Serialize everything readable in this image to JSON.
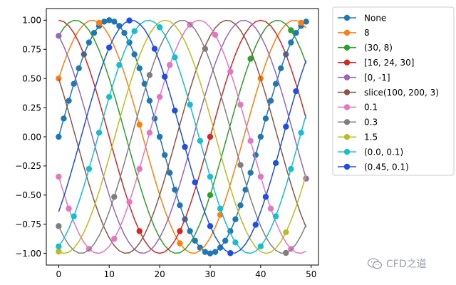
{
  "chart_data": {
    "type": "line",
    "title": "",
    "xlabel": "",
    "ylabel": "",
    "xlim": [
      -2.45,
      51.45
    ],
    "ylim": [
      -1.1,
      1.1
    ],
    "xticks": [
      0,
      10,
      20,
      30,
      40,
      50
    ],
    "xtick_labels": [
      "0",
      "10",
      "20",
      "30",
      "40",
      "50"
    ],
    "yticks": [
      -1.0,
      -0.75,
      -0.5,
      -0.25,
      0.0,
      0.25,
      0.5,
      0.75,
      1.0
    ],
    "ytick_labels": [
      "−1.00",
      "−0.75",
      "−0.50",
      "−0.25",
      "0.00",
      "0.25",
      "0.50",
      "0.75",
      "1.00"
    ],
    "grid": false,
    "legend_position": "outside-right",
    "x_range": [
      0,
      49
    ],
    "x_step": 1,
    "function": "sin(2*pi*x/40 + phase)",
    "series": [
      {
        "name": "None",
        "color": "#1f77b4",
        "phase_deg": 0,
        "markevery": "None"
      },
      {
        "name": "8",
        "color": "#ff7f0e",
        "phase_deg": 30,
        "markevery": 8
      },
      {
        "name": "(30, 8)",
        "color": "#2ca02c",
        "phase_deg": 60,
        "markevery": [
          30,
          8
        ]
      },
      {
        "name": "[16, 24, 30]",
        "color": "#d62728",
        "phase_deg": 90,
        "markevery": [
          16,
          24,
          30
        ]
      },
      {
        "name": "[0, -1]",
        "color": "#9467bd",
        "phase_deg": 120,
        "markevery": [
          0,
          -1
        ]
      },
      {
        "name": "slice(100, 200, 3)",
        "color": "#8c564b",
        "phase_deg": 150,
        "markevery": "slice(100, 200, 3)"
      },
      {
        "name": "0.1",
        "color": "#e377c2",
        "phase_deg": 200,
        "markevery": 0.1
      },
      {
        "name": "0.3",
        "color": "#7f7f7f",
        "phase_deg": 230,
        "markevery": 0.3
      },
      {
        "name": "1.5",
        "color": "#bcbd22",
        "phase_deg": 260,
        "markevery": 1.5
      },
      {
        "name": "(0.0, 0.1)",
        "color": "#17becf",
        "phase_deg": 290,
        "markevery": [
          0.0,
          0.1
        ]
      },
      {
        "name": "(0.45, 0.1)",
        "color": "#1f4fe0",
        "phase_deg": 320,
        "markevery": [
          0.45,
          0.1
        ]
      }
    ]
  },
  "watermark": {
    "text": "CFD之道",
    "icon": "wechat-icon"
  }
}
